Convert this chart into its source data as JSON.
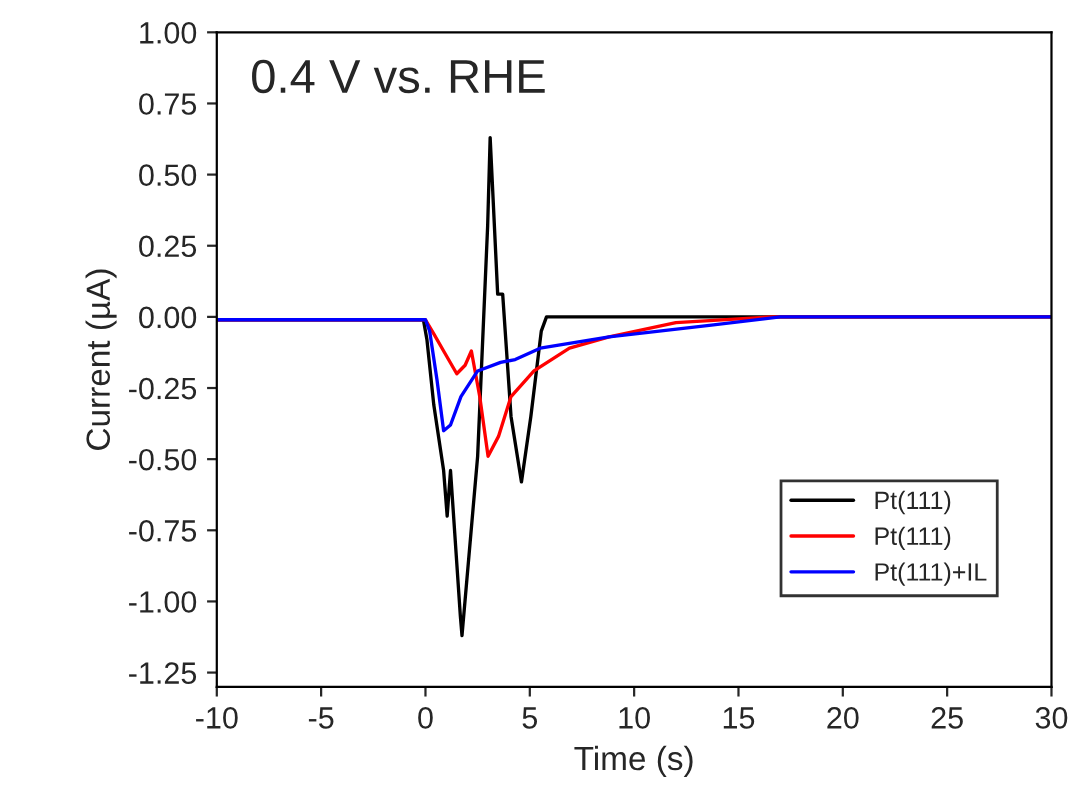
{
  "chart_data": {
    "type": "line",
    "xlabel": "Time (s)",
    "ylabel": "Current (µA)",
    "annotations": [
      "0.4 V vs. RHE"
    ],
    "xlim": [
      -10,
      30
    ],
    "ylim": [
      -1.3,
      1.0
    ],
    "xticks": [
      -10,
      -5,
      0,
      5,
      10,
      15,
      20,
      25,
      30
    ],
    "yticks": [
      {
        "value": -1.25,
        "label": "-1.25"
      },
      {
        "value": -1.0,
        "label": "-1.00"
      },
      {
        "value": -0.75,
        "label": "-0.75"
      },
      {
        "value": -0.5,
        "label": "-0.50"
      },
      {
        "value": -0.25,
        "label": "-0.25"
      },
      {
        "value": 0,
        "label": "0.00"
      },
      {
        "value": 0.25,
        "label": "0.25"
      },
      {
        "value": 0.5,
        "label": "0.50"
      },
      {
        "value": 0.75,
        "label": "0.75"
      },
      {
        "value": 1.0,
        "label": "1.00"
      }
    ],
    "grid": false,
    "legend": "bottom right",
    "marker": "none",
    "line_style": "solid",
    "series": [
      {
        "name": "Pt(111)",
        "color": "#000000",
        "x": [
          -10,
          -0.1,
          0.07,
          0.4,
          0.87,
          1.04,
          1.2,
          1.67,
          1.75,
          2.5,
          2.98,
          3.1,
          3.46,
          3.7,
          4.1,
          4.6,
          5.05,
          5.55,
          5.8,
          30
        ],
        "values": [
          -0.01,
          -0.01,
          -0.08,
          -0.31,
          -0.54,
          -0.7,
          -0.54,
          -1.05,
          -1.12,
          -0.49,
          0.32,
          0.63,
          0.08,
          0.08,
          -0.35,
          -0.58,
          -0.35,
          -0.05,
          0,
          0
        ]
      },
      {
        "name": "Pt(111)",
        "color": "#ff0000",
        "x": [
          -10,
          0,
          0.4,
          0.87,
          1.5,
          1.9,
          2.2,
          2.6,
          3.0,
          3.5,
          4.1,
          5.2,
          6.9,
          8.8,
          12,
          16.6,
          30
        ],
        "values": [
          -0.01,
          -0.01,
          -0.06,
          -0.12,
          -0.2,
          -0.17,
          -0.12,
          -0.28,
          -0.49,
          -0.42,
          -0.28,
          -0.19,
          -0.11,
          -0.07,
          -0.02,
          0,
          0
        ]
      },
      {
        "name": "Pt(111)+IL",
        "color": "#0000ff",
        "x": [
          -10,
          0,
          0.2,
          0.55,
          0.87,
          1.2,
          1.7,
          2.5,
          3.6,
          4.3,
          5.5,
          8.8,
          13.6,
          17,
          30
        ],
        "values": [
          -0.01,
          -0.01,
          -0.05,
          -0.22,
          -0.4,
          -0.38,
          -0.28,
          -0.19,
          -0.16,
          -0.15,
          -0.11,
          -0.07,
          -0.03,
          0,
          0
        ]
      }
    ]
  }
}
